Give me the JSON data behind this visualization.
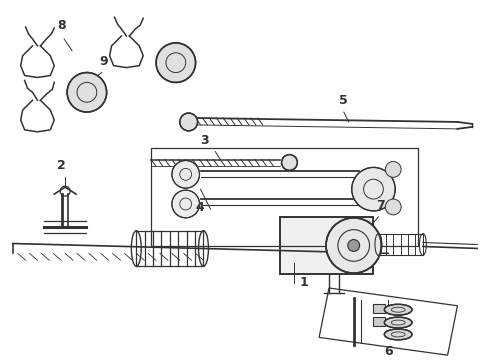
{
  "background_color": "#ffffff",
  "line_color": "#333333",
  "figsize": [
    4.9,
    3.6
  ],
  "dpi": 100,
  "part_labels": [
    "1",
    "2",
    "3",
    "4",
    "5",
    "6",
    "7",
    "8",
    "9"
  ]
}
